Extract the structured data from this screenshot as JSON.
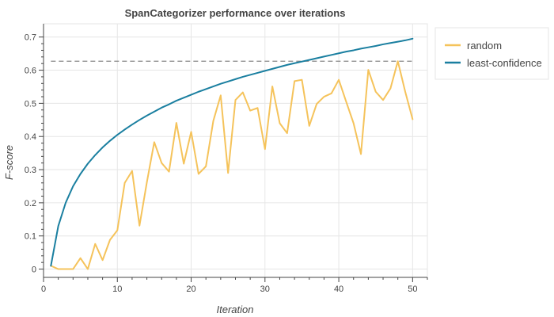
{
  "chart_data": {
    "type": "line",
    "title": "SpanCategorizer performance over iterations",
    "xlabel": "Iteration",
    "ylabel": "F-score",
    "xlim": [
      0,
      52
    ],
    "ylim": [
      -0.025,
      0.74
    ],
    "x_ticks": [
      0,
      10,
      20,
      30,
      40,
      50
    ],
    "y_ticks": [
      0,
      0.1,
      0.2,
      0.3,
      0.4,
      0.5,
      0.6,
      0.7
    ],
    "grid": true,
    "legend_position": "top-right",
    "reference_line": {
      "y": 0.627,
      "x_range": [
        1,
        50
      ],
      "style": "dashed",
      "color": "#888888"
    },
    "series": [
      {
        "name": "random",
        "color": "#f5c35b",
        "x": [
          1,
          2,
          3,
          4,
          5,
          6,
          7,
          8,
          9,
          10,
          11,
          12,
          13,
          14,
          15,
          16,
          17,
          18,
          19,
          20,
          21,
          22,
          23,
          24,
          25,
          26,
          27,
          28,
          29,
          30,
          31,
          32,
          33,
          34,
          35,
          36,
          37,
          38,
          39,
          40,
          41,
          42,
          43,
          44,
          45,
          46,
          47,
          48,
          49,
          50
        ],
        "y": [
          0.01,
          0.0,
          0.0,
          0.0,
          0.033,
          0.0,
          0.076,
          0.027,
          0.088,
          0.117,
          0.26,
          0.296,
          0.131,
          0.262,
          0.383,
          0.32,
          0.294,
          0.441,
          0.318,
          0.414,
          0.287,
          0.31,
          0.447,
          0.524,
          0.29,
          0.51,
          0.533,
          0.478,
          0.486,
          0.362,
          0.551,
          0.44,
          0.41,
          0.567,
          0.571,
          0.432,
          0.498,
          0.52,
          0.53,
          0.571,
          0.505,
          0.44,
          0.347,
          0.601,
          0.535,
          0.51,
          0.545,
          0.627,
          0.535,
          0.452
        ]
      },
      {
        "name": "least-confidence",
        "color": "#1a7fa0",
        "x": [
          1,
          2,
          3,
          4,
          5,
          6,
          7,
          8,
          9,
          10,
          11,
          12,
          13,
          14,
          15,
          16,
          17,
          18,
          19,
          20,
          21,
          22,
          23,
          24,
          25,
          26,
          27,
          28,
          29,
          30,
          31,
          32,
          33,
          34,
          35,
          36,
          37,
          38,
          39,
          40,
          41,
          42,
          43,
          44,
          45,
          46,
          47,
          48,
          49,
          50
        ],
        "y": [
          0.01,
          0.13,
          0.2,
          0.25,
          0.287,
          0.318,
          0.344,
          0.367,
          0.387,
          0.405,
          0.421,
          0.436,
          0.45,
          0.463,
          0.475,
          0.487,
          0.497,
          0.508,
          0.517,
          0.526,
          0.535,
          0.543,
          0.551,
          0.559,
          0.566,
          0.573,
          0.58,
          0.586,
          0.592,
          0.598,
          0.604,
          0.61,
          0.616,
          0.621,
          0.626,
          0.631,
          0.636,
          0.641,
          0.646,
          0.651,
          0.656,
          0.66,
          0.665,
          0.669,
          0.673,
          0.678,
          0.682,
          0.686,
          0.69,
          0.695
        ]
      }
    ]
  }
}
